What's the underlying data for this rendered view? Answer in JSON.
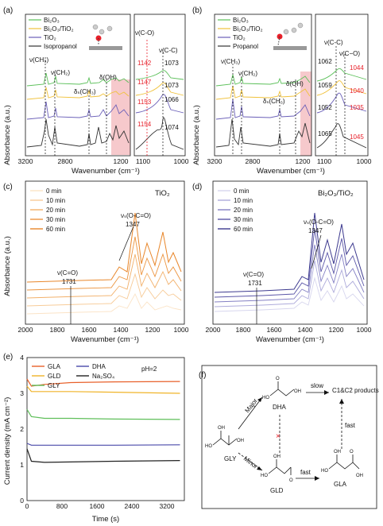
{
  "panels": {
    "a": {
      "label": "(a)",
      "ylabel": "Absorbance (a.u.)",
      "xlabel": "Wavenumber (cm⁻¹)",
      "legend": [
        "Bi₂O₃",
        "Bi₂O₃/TiO₂",
        "TiO₂",
        "Isopropanol"
      ],
      "left_ticks": [
        "3200",
        "2800",
        "1200"
      ],
      "right_ticks": [
        "1100",
        "1000"
      ],
      "annotations": {
        "vch3": "ν(CH₃)",
        "vch2": "ν(CH₂)",
        "dsch3": "δₛ(CH₃)",
        "doh": "δ(OH)",
        "vco": "ν(C-O)",
        "vcc": "ν(C-C)"
      },
      "red_values": [
        "1142",
        "1147",
        "1153",
        "1154"
      ],
      "black_values": [
        "1073",
        "1073",
        "1066",
        "1074"
      ]
    },
    "b": {
      "label": "(b)",
      "ylabel": "Absorbance (a.u.)",
      "xlabel": "Wavenumber (cm⁻¹)",
      "legend": [
        "Bi₂O₃",
        "Bi₂O₃/TiO₂",
        "TiO₂",
        "Propanol"
      ],
      "left_ticks": [
        "3200",
        "2800",
        "1200"
      ],
      "right_ticks": [
        "1100",
        "1000"
      ],
      "annotations": {
        "vch3": "ν(CH₃)",
        "vch2": "ν(CH₂)",
        "dsch3": "δₛ(CH₃)",
        "doh": "δ(OH)",
        "vcc": "ν(C-C)",
        "vco": "ν(C−O)"
      },
      "black_values": [
        "1062",
        "1059",
        "1052",
        "1065"
      ],
      "red_values": [
        "1044",
        "1040",
        "1035",
        "1045"
      ]
    },
    "c": {
      "label": "(c)",
      "ylabel": "Absorbance (a.u.)",
      "xlabel": "Wavenumber (cm⁻¹)",
      "tag": "TiO₂",
      "legend": [
        "0 min",
        "10 min",
        "20 min",
        "30 min",
        "60 min"
      ],
      "ticks": [
        "2000",
        "1800",
        "1600",
        "1400",
        "1200",
        "1000"
      ],
      "ann1": "νₛ(O-C=O)",
      "ann1_val": "1347",
      "ann2": "ν(C=O)",
      "ann2_val": "1731"
    },
    "d": {
      "label": "(d)",
      "tag": "Bi₂O₃/TiO₂",
      "xlabel": "Wavenumber (cm⁻¹)",
      "legend": [
        "0 min",
        "10 min",
        "20 min",
        "30 min",
        "60 min"
      ],
      "ticks": [
        "2000",
        "1800",
        "1600",
        "1400",
        "1200",
        "1000"
      ],
      "ann1": "νₛ(O-C=O)",
      "ann1_val": "1347",
      "ann2": "ν(C=O)",
      "ann2_val": "1731"
    },
    "f": {
      "label": "(f)",
      "nodes": {
        "dha": "DHA",
        "gly": "GLY",
        "gld": "GLD",
        "gla": "GLA",
        "products": "C1&C2 products"
      },
      "edges": {
        "major": "Major",
        "minor": "Minor",
        "slow": "slow",
        "fast1": "fast",
        "fast2": "fast"
      }
    }
  },
  "colors": {
    "bi2o3": "#5cc05a",
    "bi2o3_tio2": "#f0c23c",
    "tio2": "#6a5fb8",
    "neat": "#333333",
    "red": "#e8202a",
    "orange": "#e8862a",
    "purple": "#3d3a8f",
    "highlight": "#f6c9cc"
  },
  "chart_data": [
    {
      "type": "line",
      "panel": "e",
      "title": "",
      "xlabel": "Time (s)",
      "ylabel": "Current density (mA cm⁻²)",
      "xlim": [
        0,
        3600
      ],
      "ylim": [
        0,
        4
      ],
      "annotation": "pH=2",
      "x_ticks": [
        0,
        800,
        1600,
        2400,
        3200
      ],
      "y_ticks": [
        0,
        1,
        2,
        3,
        4
      ],
      "series": [
        {
          "name": "GLA",
          "color": "#e8602a",
          "x": [
            0,
            100,
            400,
            1000,
            2000,
            3500
          ],
          "values": [
            3.4,
            3.2,
            3.25,
            3.3,
            3.32,
            3.33
          ]
        },
        {
          "name": "GLD",
          "color": "#f0b429",
          "x": [
            0,
            100,
            400,
            1000,
            2000,
            3500
          ],
          "values": [
            3.2,
            3.05,
            3.05,
            3.05,
            3.03,
            3.0
          ]
        },
        {
          "name": "GLY",
          "color": "#5fbf5a",
          "x": [
            0,
            100,
            400,
            1000,
            2000,
            3500
          ],
          "values": [
            2.55,
            2.35,
            2.3,
            2.3,
            2.28,
            2.27
          ]
        },
        {
          "name": "DHA",
          "color": "#4a4aaa",
          "x": [
            0,
            100,
            400,
            1000,
            2000,
            3500
          ],
          "values": [
            1.6,
            1.55,
            1.55,
            1.55,
            1.55,
            1.56
          ]
        },
        {
          "name": "Na₂SO₄",
          "color": "#222222",
          "x": [
            0,
            100,
            400,
            1000,
            2000,
            3500
          ],
          "values": [
            1.45,
            1.1,
            1.07,
            1.08,
            1.1,
            1.12
          ]
        }
      ]
    }
  ]
}
